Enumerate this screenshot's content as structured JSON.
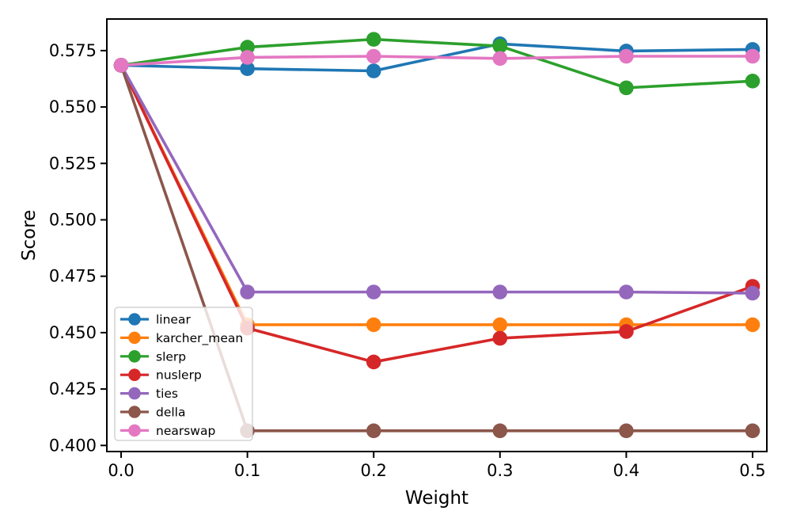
{
  "chart_data": {
    "type": "line",
    "title": "",
    "xlabel": "Weight",
    "ylabel": "Score",
    "x": [
      0.0,
      0.1,
      0.2,
      0.3,
      0.4,
      0.5
    ],
    "xtick_labels": [
      "0.0",
      "0.1",
      "0.2",
      "0.3",
      "0.4",
      "0.5"
    ],
    "ytick_values": [
      0.4,
      0.425,
      0.45,
      0.475,
      0.5,
      0.525,
      0.55,
      0.575
    ],
    "ytick_labels": [
      "0.400",
      "0.425",
      "0.450",
      "0.475",
      "0.500",
      "0.525",
      "0.550",
      "0.575"
    ],
    "xlim": [
      -0.0113,
      0.5113
    ],
    "ylim": [
      0.3973,
      0.589
    ],
    "grid": false,
    "marker": "o",
    "legend": {
      "position": "lower left",
      "background": "rgba(255,255,255,0.8)",
      "border_color": "#cccccc"
    },
    "series": [
      {
        "name": "linear",
        "color": "#1f77b4",
        "values": [
          0.5685,
          0.567,
          0.566,
          0.578,
          0.5748,
          0.5755
        ]
      },
      {
        "name": "karcher_mean",
        "color": "#ff7f0e",
        "values": [
          0.5685,
          0.4535,
          0.4535,
          0.4535,
          0.4535,
          0.4535
        ]
      },
      {
        "name": "slerp",
        "color": "#2ca02c",
        "values": [
          0.5685,
          0.5765,
          0.58,
          0.577,
          0.5585,
          0.5615
        ]
      },
      {
        "name": "nuslerp",
        "color": "#d62728",
        "values": [
          0.5685,
          0.452,
          0.437,
          0.4475,
          0.4505,
          0.4705
        ]
      },
      {
        "name": "ties",
        "color": "#9467bd",
        "values": [
          0.5685,
          0.468,
          0.468,
          0.468,
          0.468,
          0.4675
        ]
      },
      {
        "name": "della",
        "color": "#8c564b",
        "values": [
          0.5685,
          0.4065,
          0.4065,
          0.4065,
          0.4065,
          0.4065
        ]
      },
      {
        "name": "nearswap",
        "color": "#e377c2",
        "values": [
          0.5685,
          0.572,
          0.5725,
          0.5715,
          0.5725,
          0.5725
        ]
      }
    ],
    "axis_color": "#000000",
    "text_color": "#000000"
  }
}
